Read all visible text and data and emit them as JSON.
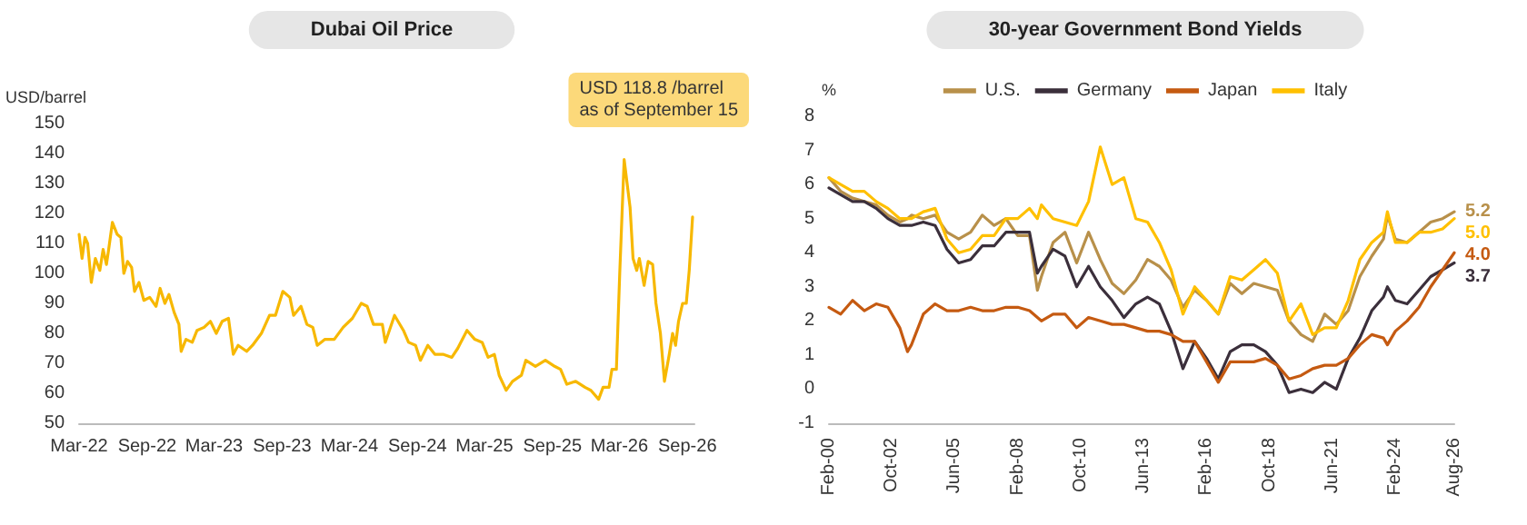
{
  "chart_data": [
    {
      "type": "line",
      "title": "Dubai Oil Price",
      "ylabel": "USD/barrel",
      "x": [
        "2022-03-01",
        "2022-03-09",
        "2022-03-17",
        "2022-03-24",
        "2022-04-03",
        "2022-04-14",
        "2022-04-26",
        "2022-05-05",
        "2022-05-14",
        "2022-05-20",
        "2022-05-30",
        "2022-06-12",
        "2022-06-22",
        "2022-06-30",
        "2022-07-10",
        "2022-07-21",
        "2022-07-29",
        "2022-08-10",
        "2022-08-23",
        "2022-09-08",
        "2022-09-25",
        "2022-10-06",
        "2022-10-19",
        "2022-10-30",
        "2022-11-13",
        "2022-11-26",
        "2022-12-02",
        "2022-12-15",
        "2023-01-01",
        "2023-01-14",
        "2023-02-02",
        "2023-02-19",
        "2023-03-07",
        "2023-03-23",
        "2023-04-09",
        "2023-04-22",
        "2023-05-05",
        "2023-05-28",
        "2023-06-13",
        "2023-07-07",
        "2023-07-29",
        "2023-08-14",
        "2023-09-03",
        "2023-09-22",
        "2023-10-02",
        "2023-10-22",
        "2023-11-07",
        "2023-11-23",
        "2023-12-05",
        "2023-12-26",
        "2024-01-20",
        "2024-02-13",
        "2024-03-09",
        "2024-04-02",
        "2024-04-18",
        "2024-05-05",
        "2024-05-29",
        "2024-06-06",
        "2024-07-01",
        "2024-07-25",
        "2024-08-08",
        "2024-08-27",
        "2024-09-09",
        "2024-09-29",
        "2024-10-18",
        "2024-11-09",
        "2024-12-03",
        "2024-12-19",
        "2025-01-13",
        "2025-02-03",
        "2025-02-23",
        "2025-03-11",
        "2025-03-28",
        "2025-04-10",
        "2025-04-29",
        "2025-05-16",
        "2025-06-09",
        "2025-06-21",
        "2025-07-17",
        "2025-08-13",
        "2025-09-07",
        "2025-09-23",
        "2025-10-10",
        "2025-11-03",
        "2025-11-28",
        "2025-12-14",
        "2026-01-04",
        "2026-01-16",
        "2026-02-01",
        "2026-02-09",
        "2026-02-21",
        "2026-03-02",
        "2026-03-14",
        "2026-03-30",
        "2026-04-07",
        "2026-04-17",
        "2026-04-24",
        "2026-05-07",
        "2026-05-18",
        "2026-05-30",
        "2026-06-08",
        "2026-06-20",
        "2026-07-01",
        "2026-07-14",
        "2026-07-23",
        "2026-07-31",
        "2026-08-08",
        "2026-08-19",
        "2026-08-29",
        "2026-09-06",
        "2026-09-15"
      ],
      "series": [
        {
          "color": "#f7b800",
          "values": [
            113,
            105,
            112,
            110,
            97,
            105,
            101,
            108,
            103,
            108,
            117,
            113,
            112,
            100,
            104,
            102,
            94,
            97,
            91,
            92,
            89,
            95,
            90,
            93,
            87,
            83,
            74,
            78,
            77,
            81,
            82,
            84,
            80,
            84,
            85,
            73,
            76,
            74,
            76,
            80,
            86,
            86,
            94,
            92,
            86,
            89,
            83,
            82,
            76,
            78,
            78,
            82,
            85,
            90,
            89,
            83,
            83,
            77,
            86,
            81,
            77,
            76,
            71,
            76,
            73,
            73,
            72,
            75,
            81,
            78,
            77,
            72,
            73,
            66,
            61,
            64,
            66,
            71,
            69,
            71,
            69,
            68,
            63,
            64,
            62,
            61,
            58,
            62,
            62,
            68,
            68,
            100,
            138,
            122,
            105,
            101,
            105,
            96,
            104,
            103,
            90,
            80,
            64,
            73,
            80,
            76,
            84,
            90,
            90,
            101,
            118.8
          ]
        }
      ],
      "xlim": [
        "2022-03-01",
        "2026-09-20"
      ],
      "xticks": [
        {
          "value": "2022-03-01",
          "label": "Mar-22"
        },
        {
          "value": "2022-09-01",
          "label": "Sep-22"
        },
        {
          "value": "2023-03-01",
          "label": "Mar-23"
        },
        {
          "value": "2023-09-01",
          "label": "Sep-23"
        },
        {
          "value": "2024-03-01",
          "label": "Mar-24"
        },
        {
          "value": "2024-09-01",
          "label": "Sep-24"
        },
        {
          "value": "2025-03-01",
          "label": "Mar-25"
        },
        {
          "value": "2025-09-01",
          "label": "Sep-25"
        },
        {
          "value": "2026-03-01",
          "label": "Mar-26"
        },
        {
          "value": "2026-09-01",
          "label": "Sep-26"
        }
      ],
      "ylim": [
        50,
        150
      ],
      "yticks": [
        50,
        60,
        70,
        80,
        90,
        100,
        110,
        120,
        130,
        140,
        150
      ],
      "annotations": [
        "USD 118.8 /barrel\nas of September 15"
      ],
      "grid": false,
      "legend": false,
      "marker": "none",
      "line_style": "solid"
    },
    {
      "type": "line",
      "title": "30-year Government Bond Yields",
      "ylabel": "%",
      "x": [
        "2000-02",
        "2000-08",
        "2001-02",
        "2001-08",
        "2002-02",
        "2002-08",
        "2003-02",
        "2003-06",
        "2003-08",
        "2004-02",
        "2004-08",
        "2005-02",
        "2005-08",
        "2006-02",
        "2006-08",
        "2007-02",
        "2007-08",
        "2008-02",
        "2008-08",
        "2008-12",
        "2009-02",
        "2009-08",
        "2010-02",
        "2010-08",
        "2011-02",
        "2011-08",
        "2012-02",
        "2012-08",
        "2013-02",
        "2013-08",
        "2014-02",
        "2014-08",
        "2015-02",
        "2015-08",
        "2016-02",
        "2016-08",
        "2017-02",
        "2017-08",
        "2018-02",
        "2018-08",
        "2019-02",
        "2019-08",
        "2020-02",
        "2020-08",
        "2021-02",
        "2021-08",
        "2022-02",
        "2022-08",
        "2023-02",
        "2023-08",
        "2023-10",
        "2024-02",
        "2024-08",
        "2025-02",
        "2025-08",
        "2026-02",
        "2026-08"
      ],
      "series": [
        {
          "name": "U.S.",
          "color": "#b8904a",
          "values": [
            6.2,
            5.8,
            5.6,
            5.5,
            5.4,
            5.1,
            4.9,
            5.0,
            5.1,
            5.0,
            5.1,
            4.6,
            4.4,
            4.6,
            5.1,
            4.8,
            5.0,
            4.5,
            4.5,
            2.9,
            3.3,
            4.3,
            4.6,
            3.7,
            4.6,
            3.8,
            3.1,
            2.8,
            3.2,
            3.8,
            3.6,
            3.2,
            2.4,
            2.9,
            2.6,
            2.2,
            3.1,
            2.8,
            3.1,
            3.0,
            2.9,
            2.0,
            1.6,
            1.4,
            2.2,
            1.9,
            2.3,
            3.3,
            3.9,
            4.4,
            5.1,
            4.4,
            4.3,
            4.6,
            4.9,
            5.0,
            5.2
          ],
          "value_labels": [
            null,
            null,
            null,
            null,
            null,
            null,
            null,
            null,
            null,
            null,
            null,
            null,
            null,
            null,
            null,
            null,
            null,
            null,
            null,
            null,
            null,
            null,
            null,
            null,
            null,
            null,
            null,
            null,
            null,
            null,
            null,
            null,
            null,
            null,
            null,
            null,
            null,
            null,
            null,
            null,
            null,
            null,
            null,
            null,
            null,
            null,
            null,
            null,
            null,
            null,
            null,
            null,
            null,
            null,
            null,
            null,
            "5.2"
          ]
        },
        {
          "name": "Germany",
          "color": "#3b2f3b",
          "values": [
            5.9,
            5.7,
            5.5,
            5.5,
            5.3,
            5.0,
            4.8,
            4.8,
            4.8,
            4.9,
            4.8,
            4.1,
            3.7,
            3.8,
            4.2,
            4.2,
            4.6,
            4.6,
            4.6,
            3.4,
            3.6,
            4.1,
            3.9,
            3.0,
            3.6,
            3.0,
            2.6,
            2.1,
            2.5,
            2.7,
            2.5,
            1.7,
            0.6,
            1.4,
            0.9,
            0.3,
            1.1,
            1.3,
            1.3,
            1.1,
            0.7,
            -0.1,
            0.0,
            -0.1,
            0.2,
            0.0,
            0.9,
            1.5,
            2.3,
            2.7,
            3.0,
            2.6,
            2.5,
            2.9,
            3.3,
            3.5,
            3.7
          ],
          "value_labels": [
            null,
            null,
            null,
            null,
            null,
            null,
            null,
            null,
            null,
            null,
            null,
            null,
            null,
            null,
            null,
            null,
            null,
            null,
            null,
            null,
            null,
            null,
            null,
            null,
            null,
            null,
            null,
            null,
            null,
            null,
            null,
            null,
            null,
            null,
            null,
            null,
            null,
            null,
            null,
            null,
            null,
            null,
            null,
            null,
            null,
            null,
            null,
            null,
            null,
            null,
            null,
            null,
            null,
            null,
            null,
            null,
            "3.7"
          ]
        },
        {
          "name": "Japan",
          "color": "#c55a11",
          "values": [
            2.4,
            2.2,
            2.6,
            2.3,
            2.5,
            2.4,
            1.8,
            1.1,
            1.3,
            2.2,
            2.5,
            2.3,
            2.3,
            2.4,
            2.3,
            2.3,
            2.4,
            2.4,
            2.3,
            2.1,
            2.0,
            2.2,
            2.2,
            1.8,
            2.1,
            2.0,
            1.9,
            1.9,
            1.8,
            1.7,
            1.7,
            1.6,
            1.4,
            1.4,
            0.8,
            0.2,
            0.8,
            0.8,
            0.8,
            0.9,
            0.7,
            0.3,
            0.4,
            0.6,
            0.7,
            0.7,
            0.9,
            1.3,
            1.6,
            1.5,
            1.3,
            1.7,
            2.0,
            2.4,
            3.0,
            3.5,
            4.0
          ],
          "value_labels": [
            null,
            null,
            null,
            null,
            null,
            null,
            null,
            null,
            null,
            null,
            null,
            null,
            null,
            null,
            null,
            null,
            null,
            null,
            null,
            null,
            null,
            null,
            null,
            null,
            null,
            null,
            null,
            null,
            null,
            null,
            null,
            null,
            null,
            null,
            null,
            null,
            null,
            null,
            null,
            null,
            null,
            null,
            null,
            null,
            null,
            null,
            null,
            null,
            null,
            null,
            null,
            null,
            null,
            null,
            null,
            null,
            "4.0"
          ]
        },
        {
          "name": "Italy",
          "color": "#ffc000",
          "values": [
            6.2,
            6.0,
            5.8,
            5.8,
            5.5,
            5.3,
            5.0,
            5.0,
            5.0,
            5.2,
            5.3,
            4.4,
            4.0,
            4.1,
            4.5,
            4.5,
            5.0,
            5.0,
            5.3,
            5.0,
            5.4,
            5.0,
            4.9,
            4.8,
            5.5,
            7.1,
            6.0,
            6.2,
            5.0,
            4.9,
            4.3,
            3.5,
            2.2,
            3.0,
            2.6,
            2.2,
            3.3,
            3.2,
            3.5,
            3.8,
            3.4,
            2.0,
            2.5,
            1.6,
            1.8,
            1.8,
            2.6,
            3.8,
            4.3,
            4.6,
            5.2,
            4.3,
            4.3,
            4.6,
            4.6,
            4.7,
            5.0
          ],
          "value_labels": [
            null,
            null,
            null,
            null,
            null,
            null,
            null,
            null,
            null,
            null,
            null,
            null,
            null,
            null,
            null,
            null,
            null,
            null,
            null,
            null,
            null,
            null,
            null,
            null,
            null,
            null,
            null,
            null,
            null,
            null,
            null,
            null,
            null,
            null,
            null,
            null,
            null,
            null,
            null,
            null,
            null,
            null,
            null,
            null,
            null,
            null,
            null,
            null,
            null,
            null,
            null,
            null,
            null,
            null,
            null,
            null,
            "5.0"
          ]
        }
      ],
      "xlim": [
        "2000-02",
        "2026-08"
      ],
      "xticks": [
        {
          "value": "2000-02",
          "label": "Feb-00"
        },
        {
          "value": "2002-10",
          "label": "Oct-02"
        },
        {
          "value": "2005-06",
          "label": "Jun-05"
        },
        {
          "value": "2008-02",
          "label": "Feb-08"
        },
        {
          "value": "2010-10",
          "label": "Oct-10"
        },
        {
          "value": "2013-06",
          "label": "Jun-13"
        },
        {
          "value": "2016-02",
          "label": "Feb-16"
        },
        {
          "value": "2018-10",
          "label": "Oct-18"
        },
        {
          "value": "2021-06",
          "label": "Jun-21"
        },
        {
          "value": "2024-02",
          "label": "Feb-24"
        },
        {
          "value": "2026-08",
          "label": "Aug-26"
        }
      ],
      "ylim": [
        -1,
        8
      ],
      "yticks": [
        -1,
        0,
        1,
        2,
        3,
        4,
        5,
        6,
        7,
        8
      ],
      "grid": false,
      "legend": "top",
      "marker": "none",
      "line_style": "solid"
    }
  ]
}
